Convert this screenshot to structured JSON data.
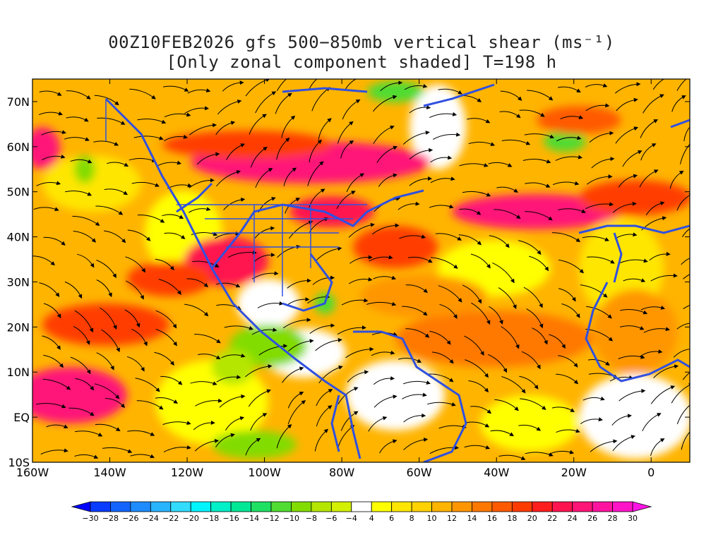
{
  "title": {
    "line1": "00Z10FEB2026 gfs 500−850mb vertical shear (ms⁻¹)",
    "line2": "[Only zonal component shaded] T=198 h"
  },
  "axes": {
    "lon_labels": [
      "160W",
      "140W",
      "120W",
      "100W",
      "80W",
      "60W",
      "40W",
      "20W",
      "0"
    ],
    "lon_values": [
      -160,
      -140,
      -120,
      -100,
      -80,
      -60,
      -40,
      -20,
      0
    ],
    "lat_labels": [
      "70N",
      "60N",
      "50N",
      "40N",
      "30N",
      "20N",
      "10N",
      "EQ",
      "10S"
    ],
    "lat_values": [
      70,
      60,
      50,
      40,
      30,
      20,
      10,
      0,
      -10
    ],
    "lon_range": [
      -160,
      10
    ],
    "lat_range": [
      -10,
      75
    ]
  },
  "colorbar": {
    "levels": [
      "-30",
      "-28",
      "-26",
      "-24",
      "-22",
      "-20",
      "-18",
      "-16",
      "-14",
      "-12",
      "-10",
      "-8",
      "-6",
      "-4",
      "4",
      "6",
      "8",
      "10",
      "12",
      "14",
      "16",
      "18",
      "20",
      "22",
      "24",
      "26",
      "28",
      "30"
    ],
    "colors": [
      "#0000ff",
      "#0a3cff",
      "#1464ff",
      "#1e8cff",
      "#28b4ff",
      "#32dcff",
      "#00f5ff",
      "#00f0c8",
      "#00e896",
      "#1ee164",
      "#50dc32",
      "#82dc00",
      "#b4e600",
      "#d2f000",
      "#ffffff",
      "#ffff00",
      "#ffe600",
      "#ffd200",
      "#ffb400",
      "#ff9600",
      "#ff7800",
      "#ff5a00",
      "#ff3c00",
      "#ff1e1e",
      "#ff1450",
      "#ff1478",
      "#ff14a0",
      "#ff14c8",
      "#ff14e6"
    ]
  },
  "map_style": {
    "coast_color": "#3050e0",
    "streamline_color": "#000000"
  }
}
